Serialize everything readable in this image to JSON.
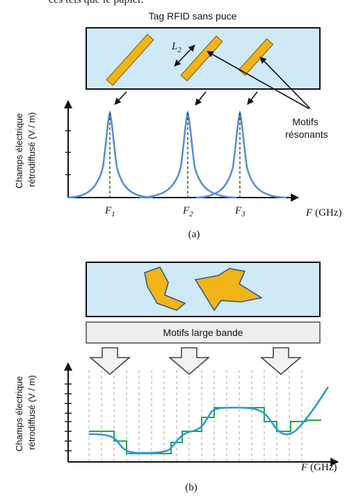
{
  "top_text_fragment": "ces tels que le papier.",
  "panel_a": {
    "tag_title": "Tag RFID sans puce",
    "length_label": {
      "base": "L",
      "sub": "2"
    },
    "resonant_label_line1": "Motifs",
    "resonant_label_line2": "résonants",
    "ylabel_line1": "Champs électrique",
    "ylabel_line2": "rétrodiffusé (V / m)",
    "freq_labels": [
      {
        "base": "F",
        "sub": "1"
      },
      {
        "base": "F",
        "sub": "2"
      },
      {
        "base": "F",
        "sub": "3"
      }
    ],
    "xlabel": {
      "var": "F",
      "unit": "(GHz)"
    },
    "caption": "(a)"
  },
  "panel_b": {
    "band_label": "Motifs large bande",
    "ylabel_line1": "Champs électrique",
    "ylabel_line2": "rétrodiffusé (V / m)",
    "xlabel": {
      "var": "F",
      "unit": "(GHz)"
    },
    "caption": "(b)"
  },
  "colors": {
    "tag_fill": "#cfe9f6",
    "resonator_fill": "#f2b416",
    "curve": "#5b8fd2",
    "smooth_curve": "#2f9ad3",
    "step_curve": "#22a845",
    "band_fill": "#eeeeee"
  }
}
